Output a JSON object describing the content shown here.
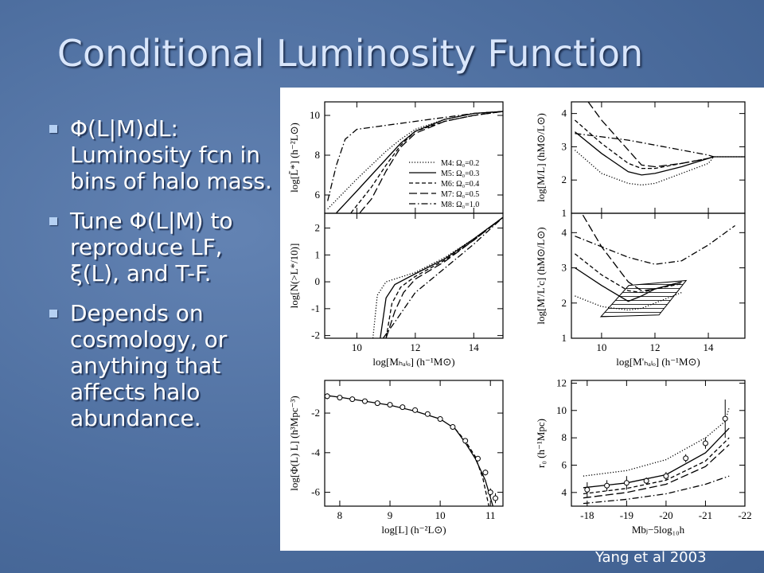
{
  "title": "Conditional Luminosity Function",
  "bullets": [
    "Φ(L|M)dL: Luminosity fcn in bins of halo mass.",
    "Tune Φ(L|M) to reproduce LF, ξ(L), and T-F.",
    "Depends on cosmology, or anything that affects halo abundance."
  ],
  "credit": "Yang et al 2003",
  "chart_data": [
    {
      "type": "line",
      "color": "#000000",
      "xlim": [
        8.9,
        15
      ],
      "ylim": [
        5.08,
        10.68
      ],
      "xticks": [
        10,
        12,
        14
      ],
      "yticks": [
        6,
        8,
        10
      ],
      "xtick_labels": false,
      "ylabel": "log[L̃*] (h⁻²L⊙)",
      "legend": "lower right",
      "series": [
        {
          "name": "M4: Ω₀=0.2",
          "dash": "dotted",
          "x": [
            9.0,
            10,
            11,
            11.5,
            12,
            13,
            14,
            15
          ],
          "y": [
            5.3,
            6.8,
            8.2,
            8.8,
            9.3,
            9.8,
            10.1,
            10.2
          ]
        },
        {
          "name": "M5: Ω₀=0.3",
          "dash": "solid",
          "x": [
            9.3,
            10,
            11,
            11.5,
            12,
            13,
            14,
            15
          ],
          "y": [
            5.1,
            6.2,
            7.8,
            8.6,
            9.2,
            9.8,
            10.1,
            10.2
          ]
        },
        {
          "name": "M6: Ω₀=0.4",
          "dash": "short",
          "x": [
            9.8,
            10.5,
            11,
            11.5,
            12,
            13,
            14,
            15
          ],
          "y": [
            5.1,
            6.4,
            7.5,
            8.5,
            9.2,
            9.7,
            10.0,
            10.2
          ]
        },
        {
          "name": "M7: Ω₀=0.5",
          "dash": "long",
          "x": [
            10.1,
            10.5,
            11,
            11.5,
            12,
            13,
            14,
            15
          ],
          "y": [
            5.1,
            5.8,
            7.2,
            8.4,
            9.1,
            9.7,
            10.0,
            10.2
          ]
        },
        {
          "name": "M8: Ω₀=1.0",
          "dash": "dashdot",
          "x": [
            9.0,
            9.3,
            9.6,
            10,
            11,
            12,
            13,
            14,
            15
          ],
          "y": [
            5.7,
            7.5,
            8.8,
            9.3,
            9.5,
            9.7,
            9.9,
            10.1,
            10.2
          ]
        }
      ]
    },
    {
      "type": "line",
      "color": "#000000",
      "xlim": [
        8.87,
        15.37
      ],
      "ylim": [
        1,
        4.35
      ],
      "xticks": [
        10,
        12,
        14
      ],
      "yticks": [
        1,
        2,
        3,
        4
      ],
      "xtick_labels": false,
      "ylabel": "log[M/L] (hM⊙/L⊙)",
      "series": [
        {
          "dash": "dotted",
          "x": [
            9,
            10,
            11,
            11.5,
            12,
            13,
            14,
            14.2,
            15.37
          ],
          "y": [
            2.9,
            2.2,
            1.9,
            1.85,
            1.9,
            2.2,
            2.5,
            2.7,
            2.7
          ]
        },
        {
          "dash": "solid",
          "x": [
            9,
            10,
            11,
            11.5,
            12,
            13,
            14,
            14.2,
            15.37
          ],
          "y": [
            3.45,
            2.8,
            2.25,
            2.15,
            2.2,
            2.4,
            2.65,
            2.7,
            2.7
          ]
        },
        {
          "dash": "short",
          "x": [
            9,
            10,
            11,
            11.5,
            12,
            13,
            14,
            14.2
          ],
          "y": [
            3.8,
            3.1,
            2.5,
            2.35,
            2.35,
            2.5,
            2.65,
            2.7
          ]
        },
        {
          "dash": "long",
          "x": [
            9.5,
            10,
            11,
            11.5,
            12,
            13,
            14,
            14.2
          ],
          "y": [
            4.35,
            3.8,
            2.9,
            2.45,
            2.4,
            2.5,
            2.65,
            2.7
          ]
        },
        {
          "dash": "dashdot",
          "x": [
            9,
            10,
            11,
            12,
            13,
            14,
            14.2
          ],
          "y": [
            3.4,
            3.3,
            3.2,
            3.05,
            2.9,
            2.75,
            2.7
          ]
        }
      ]
    },
    {
      "type": "line",
      "color": "#000000",
      "xlim": [
        8.9,
        15
      ],
      "ylim": [
        -2.1,
        2.55
      ],
      "xticks": [
        10,
        12,
        14
      ],
      "yticks": [
        -2,
        -1,
        0,
        1,
        2
      ],
      "xlabel": "log[Mₕₐₗₒ] (h⁻¹M⊙)",
      "ylabel": "log[N(>L*/10)]",
      "series": [
        {
          "dash": "dotted",
          "x": [
            10.55,
            10.7,
            11,
            12,
            13,
            14,
            15
          ],
          "y": [
            -2.1,
            -0.5,
            0.0,
            0.35,
            0.9,
            1.6,
            2.4
          ]
        },
        {
          "dash": "solid",
          "x": [
            10.8,
            11,
            11.3,
            12,
            13,
            14,
            15
          ],
          "y": [
            -2.1,
            -0.6,
            -0.1,
            0.3,
            0.85,
            1.6,
            2.4
          ]
        },
        {
          "dash": "short",
          "x": [
            11.0,
            11.2,
            11.5,
            12,
            13,
            14,
            15
          ],
          "y": [
            -2.1,
            -0.8,
            -0.2,
            0.2,
            0.8,
            1.55,
            2.4
          ]
        },
        {
          "dash": "long",
          "x": [
            11.0,
            11.3,
            11.6,
            12,
            13,
            14,
            15
          ],
          "y": [
            -2.1,
            -1.1,
            -0.4,
            0.1,
            0.75,
            1.55,
            2.4
          ]
        },
        {
          "dash": "dashdot",
          "x": [
            10.9,
            11.3,
            12,
            13,
            14,
            15
          ],
          "y": [
            -2.1,
            -1.5,
            -0.4,
            0.5,
            1.4,
            2.4
          ]
        }
      ]
    },
    {
      "type": "line",
      "color": "#000000",
      "xlim": [
        8.87,
        15.37
      ],
      "ylim": [
        1,
        4.55
      ],
      "xticks": [
        10,
        12,
        14
      ],
      "yticks": [
        1,
        2,
        3,
        4
      ],
      "xlabel": "log[M'ₕₐₗₒ] (h⁻¹M⊙)",
      "ylabel": "log[M'/L'c] (hM⊙/L⊙)",
      "band": {
        "x": [
          9.97,
          11.02,
          13.17,
          12.15
        ],
        "y": [
          1.61,
          2.5,
          2.64,
          1.66
        ]
      },
      "series": [
        {
          "dash": "dotted",
          "x": [
            9,
            10,
            11,
            11.5,
            12,
            13
          ],
          "y": [
            2.2,
            1.9,
            1.8,
            1.85,
            2.0,
            2.3
          ]
        },
        {
          "dash": "solid",
          "x": [
            9,
            10,
            11,
            11.5,
            12,
            13
          ],
          "y": [
            3.0,
            2.5,
            2.05,
            2.2,
            2.4,
            2.6
          ]
        },
        {
          "dash": "short",
          "x": [
            9,
            10,
            11,
            11.5,
            12,
            13
          ],
          "y": [
            3.4,
            2.8,
            2.35,
            2.3,
            2.4,
            2.55
          ]
        },
        {
          "dash": "long",
          "x": [
            9.3,
            10,
            11,
            11.5,
            12,
            13
          ],
          "y": [
            4.5,
            3.6,
            2.6,
            2.35,
            2.4,
            2.6
          ]
        },
        {
          "dash": "dashdot",
          "x": [
            9,
            10,
            11,
            12,
            13,
            14,
            15
          ],
          "y": [
            3.9,
            3.6,
            3.3,
            3.1,
            3.2,
            3.65,
            4.2
          ]
        }
      ]
    },
    {
      "type": "line",
      "color": "#000000",
      "xlim": [
        7.7,
        11.25
      ],
      "ylim": [
        -6.7,
        -0.35
      ],
      "xticks": [
        8,
        9,
        10,
        11
      ],
      "yticks": [
        -6,
        -4,
        -2
      ],
      "xlabel": "log[L] (h⁻²L⊙)",
      "ylabel": "log[Φ(L) L] (h³Mpc⁻³)",
      "points": {
        "x": [
          7.75,
          8.0,
          8.25,
          8.5,
          8.75,
          9.0,
          9.25,
          9.5,
          9.75,
          10.0,
          10.25,
          10.5,
          10.75,
          10.9,
          11.0,
          11.1
        ],
        "y": [
          -1.15,
          -1.22,
          -1.3,
          -1.4,
          -1.5,
          -1.58,
          -1.7,
          -1.85,
          -2.05,
          -2.3,
          -2.7,
          -3.4,
          -4.3,
          -5.0,
          -6.0,
          -6.3
        ],
        "errors": [
          0.15,
          0.08,
          0.06,
          0.05,
          0.05,
          0.05,
          0.05,
          0.05,
          0.05,
          0.05,
          0.06,
          0.07,
          0.1,
          0.15,
          0.2,
          0.25
        ]
      },
      "series": [
        {
          "dash": "solid",
          "x": [
            7.7,
            8,
            9,
            9.5,
            10,
            10.3,
            10.5,
            10.7,
            10.9,
            11.05
          ],
          "y": [
            -1.1,
            -1.2,
            -1.6,
            -1.9,
            -2.3,
            -2.8,
            -3.5,
            -4.3,
            -5.4,
            -6.7
          ]
        },
        {
          "dash": "short",
          "x": [
            10.3,
            10.5,
            10.7,
            10.85,
            10.97
          ],
          "y": [
            -2.8,
            -3.4,
            -4.2,
            -5.3,
            -6.7
          ]
        }
      ]
    },
    {
      "type": "line",
      "color": "#000000",
      "xlim": [
        -17.6,
        -22
      ],
      "ylim": [
        3,
        12.2
      ],
      "xticks": [
        -18,
        -19,
        -20,
        -21,
        -22
      ],
      "yticks": [
        4,
        6,
        8,
        10,
        12
      ],
      "xlabel": "Mbⱼ−5log₁₀h",
      "ylabel": "r₀ (h⁻¹Mpc)",
      "points": {
        "x": [
          -18,
          -18.5,
          -19,
          -19.5,
          -20,
          -20.5,
          -21,
          -21.5
        ],
        "y": [
          4.2,
          4.5,
          4.7,
          4.85,
          5.2,
          6.5,
          7.6,
          9.4
        ],
        "errors": [
          0.55,
          0.4,
          0.5,
          0.25,
          0.3,
          0.3,
          0.4,
          1.4
        ]
      },
      "series": [
        {
          "dash": "dotted",
          "x": [
            -17.9,
            -19,
            -20,
            -21,
            -21.5,
            -21.6
          ],
          "y": [
            5.2,
            5.6,
            6.4,
            8.0,
            9.2,
            10.2
          ]
        },
        {
          "dash": "solid",
          "x": [
            -17.9,
            -19,
            -20,
            -21,
            -21.6
          ],
          "y": [
            4.35,
            4.7,
            5.3,
            6.9,
            8.7
          ]
        },
        {
          "dash": "short",
          "x": [
            -17.9,
            -19,
            -20,
            -21,
            -21.6
          ],
          "y": [
            3.9,
            4.3,
            4.9,
            6.3,
            8.0
          ]
        },
        {
          "dash": "long",
          "x": [
            -17.9,
            -19,
            -20,
            -21,
            -21.6
          ],
          "y": [
            3.6,
            4.0,
            4.6,
            5.9,
            7.5
          ]
        },
        {
          "dash": "dashdot",
          "x": [
            -17.9,
            -19,
            -20,
            -21,
            -21.6
          ],
          "y": [
            3.2,
            3.5,
            3.9,
            4.6,
            5.2
          ]
        }
      ]
    }
  ]
}
